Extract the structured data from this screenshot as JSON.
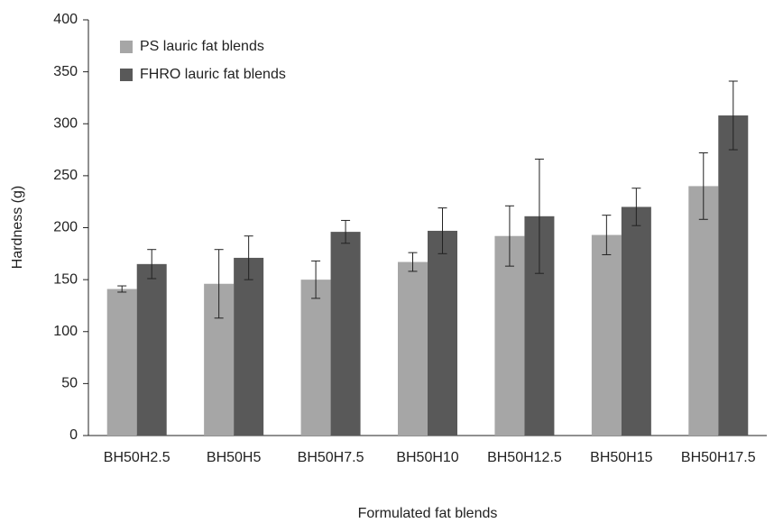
{
  "chart_data": {
    "type": "bar",
    "x_label": "Formulated fat blends",
    "y_label": "Hardness (g)",
    "categories": [
      "BH50H2.5",
      "BH50H5",
      "BH50H7.5",
      "BH50H10",
      "BH50H12.5",
      "BH50H15",
      "BH50H17.5"
    ],
    "series": [
      {
        "name": "PS lauric fat blends",
        "color": "#a6a6a6",
        "values": [
          141,
          146,
          150,
          167,
          192,
          193,
          240
        ],
        "errors": [
          3,
          33,
          18,
          9,
          29,
          19,
          32
        ]
      },
      {
        "name": "FHRO lauric fat blends",
        "color": "#595959",
        "values": [
          165,
          171,
          196,
          197,
          211,
          220,
          308
        ],
        "errors": [
          14,
          21,
          11,
          22,
          55,
          18,
          33
        ]
      }
    ],
    "ylim": [
      0,
      400
    ],
    "yticks": [
      0,
      50,
      100,
      150,
      200,
      250,
      300,
      350,
      400
    ],
    "grid": false,
    "legend": "upper left"
  }
}
